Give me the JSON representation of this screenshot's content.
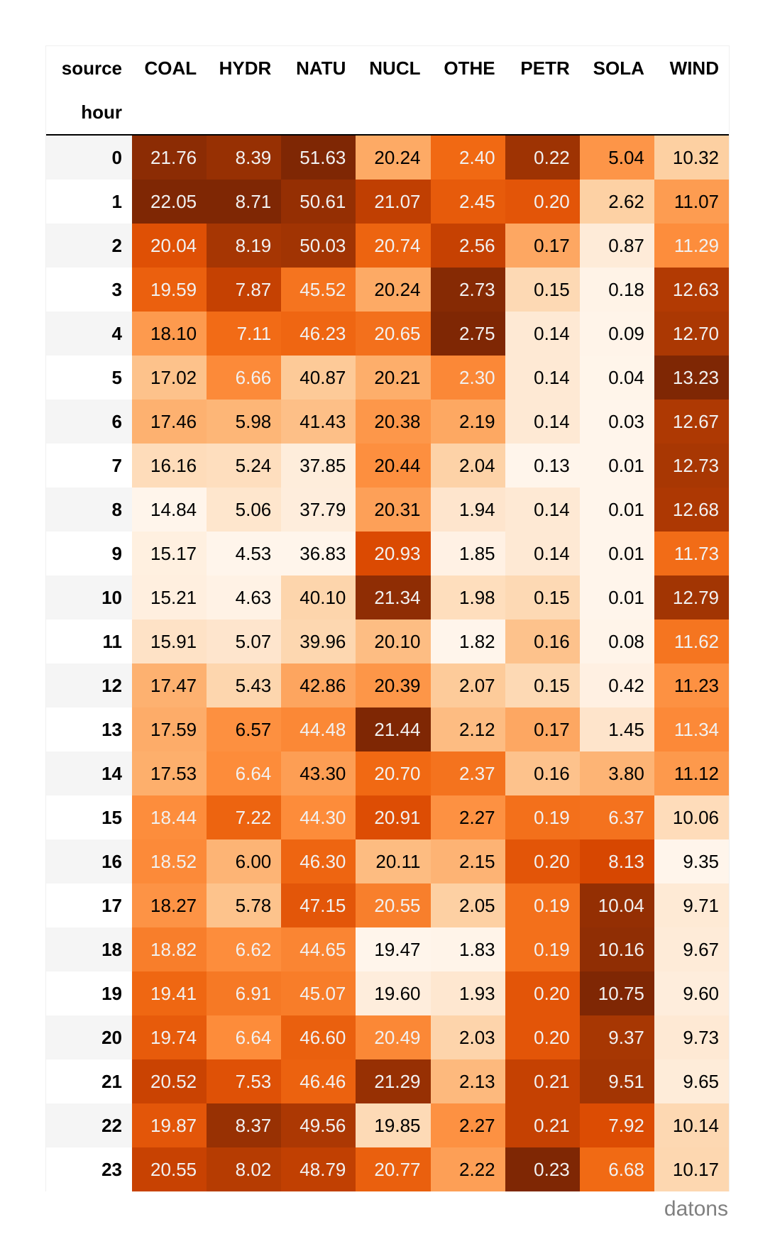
{
  "table": {
    "columns_label": "source",
    "index_label": "hour",
    "columns": [
      "COAL",
      "HYDR",
      "NATU",
      "NUCL",
      "OTHE",
      "PETR",
      "SOLA",
      "WIND"
    ],
    "rows": [
      {
        "hour": "0",
        "values": [
          21.76,
          8.39,
          51.63,
          20.24,
          2.4,
          0.22,
          5.04,
          10.32
        ]
      },
      {
        "hour": "1",
        "values": [
          22.05,
          8.71,
          50.61,
          21.07,
          2.45,
          0.2,
          2.62,
          11.07
        ]
      },
      {
        "hour": "2",
        "values": [
          20.04,
          8.19,
          50.03,
          20.74,
          2.56,
          0.17,
          0.87,
          11.29
        ]
      },
      {
        "hour": "3",
        "values": [
          19.59,
          7.87,
          45.52,
          20.24,
          2.73,
          0.15,
          0.18,
          12.63
        ]
      },
      {
        "hour": "4",
        "values": [
          18.1,
          7.11,
          46.23,
          20.65,
          2.75,
          0.14,
          0.09,
          12.7
        ]
      },
      {
        "hour": "5",
        "values": [
          17.02,
          6.66,
          40.87,
          20.21,
          2.3,
          0.14,
          0.04,
          13.23
        ]
      },
      {
        "hour": "6",
        "values": [
          17.46,
          5.98,
          41.43,
          20.38,
          2.19,
          0.14,
          0.03,
          12.67
        ]
      },
      {
        "hour": "7",
        "values": [
          16.16,
          5.24,
          37.85,
          20.44,
          2.04,
          0.13,
          0.01,
          12.73
        ]
      },
      {
        "hour": "8",
        "values": [
          14.84,
          5.06,
          37.79,
          20.31,
          1.94,
          0.14,
          0.01,
          12.68
        ]
      },
      {
        "hour": "9",
        "values": [
          15.17,
          4.53,
          36.83,
          20.93,
          1.85,
          0.14,
          0.01,
          11.73
        ]
      },
      {
        "hour": "10",
        "values": [
          15.21,
          4.63,
          40.1,
          21.34,
          1.98,
          0.15,
          0.01,
          12.79
        ]
      },
      {
        "hour": "11",
        "values": [
          15.91,
          5.07,
          39.96,
          20.1,
          1.82,
          0.16,
          0.08,
          11.62
        ]
      },
      {
        "hour": "12",
        "values": [
          17.47,
          5.43,
          42.86,
          20.39,
          2.07,
          0.15,
          0.42,
          11.23
        ]
      },
      {
        "hour": "13",
        "values": [
          17.59,
          6.57,
          44.48,
          21.44,
          2.12,
          0.17,
          1.45,
          11.34
        ]
      },
      {
        "hour": "14",
        "values": [
          17.53,
          6.64,
          43.3,
          20.7,
          2.37,
          0.16,
          3.8,
          11.12
        ]
      },
      {
        "hour": "15",
        "values": [
          18.44,
          7.22,
          44.3,
          20.91,
          2.27,
          0.19,
          6.37,
          10.06
        ]
      },
      {
        "hour": "16",
        "values": [
          18.52,
          6.0,
          46.3,
          20.11,
          2.15,
          0.2,
          8.13,
          9.35
        ]
      },
      {
        "hour": "17",
        "values": [
          18.27,
          5.78,
          47.15,
          20.55,
          2.05,
          0.19,
          10.04,
          9.71
        ]
      },
      {
        "hour": "18",
        "values": [
          18.82,
          6.62,
          44.65,
          19.47,
          1.83,
          0.19,
          10.16,
          9.67
        ]
      },
      {
        "hour": "19",
        "values": [
          19.41,
          6.91,
          45.07,
          19.6,
          1.93,
          0.2,
          10.75,
          9.6
        ]
      },
      {
        "hour": "20",
        "values": [
          19.74,
          6.64,
          46.6,
          20.49,
          2.03,
          0.2,
          9.37,
          9.73
        ]
      },
      {
        "hour": "21",
        "values": [
          20.52,
          7.53,
          46.46,
          21.29,
          2.13,
          0.21,
          9.51,
          9.65
        ]
      },
      {
        "hour": "22",
        "values": [
          19.87,
          8.37,
          49.56,
          19.85,
          2.27,
          0.21,
          7.92,
          10.14
        ]
      },
      {
        "hour": "23",
        "values": [
          20.55,
          8.02,
          48.79,
          20.77,
          2.22,
          0.23,
          6.68,
          10.17
        ]
      }
    ],
    "colormap": "Oranges",
    "gradient_axis": "column"
  },
  "watermark": "datons",
  "chart_data": {
    "type": "heatmap",
    "title": "",
    "xlabel": "source",
    "ylabel": "hour",
    "x": [
      "COAL",
      "HYDR",
      "NATU",
      "NUCL",
      "OTHE",
      "PETR",
      "SOLA",
      "WIND"
    ],
    "y": [
      "0",
      "1",
      "2",
      "3",
      "4",
      "5",
      "6",
      "7",
      "8",
      "9",
      "10",
      "11",
      "12",
      "13",
      "14",
      "15",
      "16",
      "17",
      "18",
      "19",
      "20",
      "21",
      "22",
      "23"
    ],
    "colormap": "Oranges",
    "normalization": "per-column min-max",
    "z": [
      [
        21.76,
        8.39,
        51.63,
        20.24,
        2.4,
        0.22,
        5.04,
        10.32
      ],
      [
        22.05,
        8.71,
        50.61,
        21.07,
        2.45,
        0.2,
        2.62,
        11.07
      ],
      [
        20.04,
        8.19,
        50.03,
        20.74,
        2.56,
        0.17,
        0.87,
        11.29
      ],
      [
        19.59,
        7.87,
        45.52,
        20.24,
        2.73,
        0.15,
        0.18,
        12.63
      ],
      [
        18.1,
        7.11,
        46.23,
        20.65,
        2.75,
        0.14,
        0.09,
        12.7
      ],
      [
        17.02,
        6.66,
        40.87,
        20.21,
        2.3,
        0.14,
        0.04,
        13.23
      ],
      [
        17.46,
        5.98,
        41.43,
        20.38,
        2.19,
        0.14,
        0.03,
        12.67
      ],
      [
        16.16,
        5.24,
        37.85,
        20.44,
        2.04,
        0.13,
        0.01,
        12.73
      ],
      [
        14.84,
        5.06,
        37.79,
        20.31,
        1.94,
        0.14,
        0.01,
        12.68
      ],
      [
        15.17,
        4.53,
        36.83,
        20.93,
        1.85,
        0.14,
        0.01,
        11.73
      ],
      [
        15.21,
        4.63,
        40.1,
        21.34,
        1.98,
        0.15,
        0.01,
        12.79
      ],
      [
        15.91,
        5.07,
        39.96,
        20.1,
        1.82,
        0.16,
        0.08,
        11.62
      ],
      [
        17.47,
        5.43,
        42.86,
        20.39,
        2.07,
        0.15,
        0.42,
        11.23
      ],
      [
        17.59,
        6.57,
        44.48,
        21.44,
        2.12,
        0.17,
        1.45,
        11.34
      ],
      [
        17.53,
        6.64,
        43.3,
        20.7,
        2.37,
        0.16,
        3.8,
        11.12
      ],
      [
        18.44,
        7.22,
        44.3,
        20.91,
        2.27,
        0.19,
        6.37,
        10.06
      ],
      [
        18.52,
        6.0,
        46.3,
        20.11,
        2.15,
        0.2,
        8.13,
        9.35
      ],
      [
        18.27,
        5.78,
        47.15,
        20.55,
        2.05,
        0.19,
        10.04,
        9.71
      ],
      [
        18.82,
        6.62,
        44.65,
        19.47,
        1.83,
        0.19,
        10.16,
        9.67
      ],
      [
        19.41,
        6.91,
        45.07,
        19.6,
        1.93,
        0.2,
        10.75,
        9.6
      ],
      [
        19.74,
        6.64,
        46.6,
        20.49,
        2.03,
        0.2,
        9.37,
        9.73
      ],
      [
        20.52,
        7.53,
        46.46,
        21.29,
        2.13,
        0.21,
        9.51,
        9.65
      ],
      [
        19.87,
        8.37,
        49.56,
        19.85,
        2.27,
        0.21,
        7.92,
        10.14
      ],
      [
        20.55,
        8.02,
        48.79,
        20.77,
        2.22,
        0.23,
        6.68,
        10.17
      ]
    ]
  }
}
